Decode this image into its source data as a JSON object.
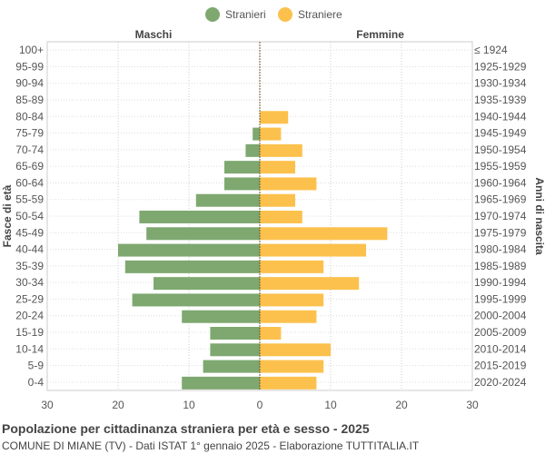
{
  "chart_data": {
    "type": "bar",
    "orientation": "horizontal-pyramid",
    "legend": {
      "placement": "top-center",
      "items": [
        {
          "name": "Stranieri",
          "color": "#7ea870"
        },
        {
          "name": "Straniere",
          "color": "#fcc14d"
        }
      ]
    },
    "side_labels": {
      "left": "Maschi",
      "right": "Femmine"
    },
    "ylabel_left": "Fasce di età",
    "ylabel_right": "Anni di nascita",
    "xlim": [
      -30,
      30
    ],
    "xticks": [
      -30,
      -20,
      -10,
      0,
      10,
      20,
      30
    ],
    "xtick_labels": [
      "30",
      "20",
      "10",
      "0",
      "10",
      "20",
      "30"
    ],
    "grid": true,
    "categories": [
      "100+",
      "95-99",
      "90-94",
      "85-89",
      "80-84",
      "75-79",
      "70-74",
      "65-69",
      "60-64",
      "55-59",
      "50-54",
      "45-49",
      "40-44",
      "35-39",
      "30-34",
      "25-29",
      "20-24",
      "15-19",
      "10-14",
      "5-9",
      "0-4"
    ],
    "birth_years": [
      "≤ 1924",
      "1925-1929",
      "1930-1934",
      "1935-1939",
      "1940-1944",
      "1945-1949",
      "1950-1954",
      "1955-1959",
      "1960-1964",
      "1965-1969",
      "1970-1974",
      "1975-1979",
      "1980-1984",
      "1985-1989",
      "1990-1994",
      "1995-1999",
      "2000-2004",
      "2005-2009",
      "2010-2014",
      "2015-2019",
      "2020-2024"
    ],
    "series": [
      {
        "name": "Stranieri",
        "side": "left",
        "color": "#7ea870",
        "values": [
          0,
          0,
          0,
          0,
          0,
          1,
          2,
          5,
          5,
          9,
          17,
          16,
          20,
          19,
          15,
          18,
          11,
          7,
          7,
          8,
          11
        ]
      },
      {
        "name": "Straniere",
        "side": "right",
        "color": "#fcc14d",
        "values": [
          0,
          0,
          0,
          0,
          4,
          3,
          6,
          5,
          8,
          5,
          6,
          18,
          15,
          9,
          14,
          9,
          8,
          3,
          10,
          9,
          8
        ]
      }
    ]
  },
  "footer": {
    "title": "Popolazione per cittadinanza straniera per età e sesso - 2025",
    "subtitle": "COMUNE DI MIANE (TV) - Dati ISTAT 1° gennaio 2025 - Elaborazione TUTTITALIA.IT"
  }
}
